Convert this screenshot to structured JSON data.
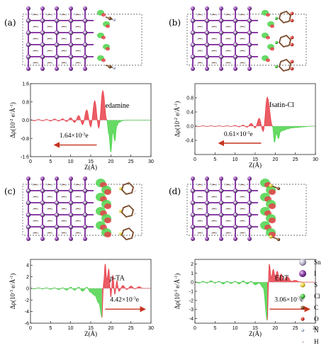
{
  "chart_data": [
    {
      "type": "area",
      "panel": "(a)",
      "molecule": "edamine",
      "charge_text": "1.64×10",
      "charge_exp": "-3",
      "charge_unit": "e",
      "xlabel": "Z(Å)",
      "ylabel_main": "Δρ(10",
      "ylabel_exp": "-2",
      "ylabel_tail": " e/Å",
      "ylabel_exp2": "-1",
      "ylabel_close": ")",
      "xlim": [
        0,
        30
      ],
      "ylim": [
        -1.6,
        1.6
      ],
      "yticks": [
        -1.6,
        -0.8,
        0.0,
        0.8,
        1.6
      ],
      "ytick_labels": [
        "-1.6",
        "-0.8",
        "0.0",
        "0.8",
        "1.6"
      ],
      "xticks": [
        0,
        5,
        10,
        15,
        20,
        25,
        30
      ],
      "xtick_labels": [
        "0",
        "5",
        "10",
        "15",
        "20",
        "25",
        "30"
      ],
      "boundary_z": 19,
      "series": [
        {
          "x": [
            0,
            1,
            2,
            3,
            4,
            5,
            6,
            7,
            8,
            9,
            10,
            11,
            12,
            13,
            14,
            15,
            16,
            17,
            18,
            19,
            19.5,
            20,
            20.5,
            21,
            21.5,
            22,
            23,
            24,
            25,
            26,
            27,
            28,
            29,
            30
          ],
          "y": [
            0.02,
            -0.03,
            0.03,
            -0.03,
            0.03,
            -0.04,
            0.05,
            -0.04,
            0.06,
            -0.06,
            0.1,
            -0.1,
            0.2,
            -0.2,
            0.45,
            -0.3,
            0.85,
            -0.35,
            1.3,
            0.0,
            -0.6,
            -1.4,
            -0.5,
            -0.9,
            -0.25,
            -0.1,
            -0.02,
            0.0,
            0.0,
            0.0,
            0.0,
            0.0,
            0.0,
            0.0
          ]
        }
      ]
    },
    {
      "type": "area",
      "panel": "(b)",
      "molecule": "Isatin-Cl",
      "charge_text": "0.61×10",
      "charge_exp": "-3",
      "charge_unit": "e",
      "xlabel": "Z(Å)",
      "ylabel_main": "Δρ(10",
      "ylabel_exp": "-2",
      "ylabel_tail": " e/Å",
      "ylabel_exp2": "-1",
      "ylabel_close": ")",
      "xlim": [
        0,
        30
      ],
      "ylim": [
        -0.8,
        1.2
      ],
      "yticks": [
        -0.4,
        0.0,
        0.4,
        0.8
      ],
      "ytick_labels": [
        "-0.4",
        "0.0",
        "0.4",
        "0.8"
      ],
      "xticks": [
        0,
        5,
        10,
        15,
        20,
        25,
        30
      ],
      "xtick_labels": [
        "0",
        "5",
        "10",
        "15",
        "20",
        "25",
        "30"
      ],
      "boundary_z": 19.3,
      "series": [
        {
          "x": [
            0,
            1,
            2,
            3,
            4,
            5,
            6,
            7,
            8,
            9,
            10,
            11,
            12,
            13,
            14,
            15,
            16,
            17,
            18,
            19.3,
            19.8,
            20.3,
            20.8,
            21.3,
            22,
            23,
            24,
            25,
            26,
            27,
            28,
            29,
            30
          ],
          "y": [
            0.01,
            -0.01,
            0.01,
            -0.01,
            0.01,
            -0.01,
            0.01,
            -0.01,
            0.01,
            -0.01,
            0.02,
            -0.02,
            0.03,
            -0.03,
            0.08,
            -0.05,
            0.22,
            -0.15,
            0.82,
            0.0,
            -0.45,
            -0.2,
            -0.35,
            -0.15,
            -0.12,
            -0.08,
            -0.05,
            -0.04,
            -0.03,
            -0.02,
            -0.01,
            0.0,
            0.0
          ]
        }
      ]
    },
    {
      "type": "area",
      "panel": "(c)",
      "molecule_italic": "p",
      "molecule": "-TA",
      "charge_text": "4.42×10",
      "charge_exp": "-3",
      "charge_unit": "e",
      "xlabel": "Z(Å)",
      "ylabel_main": "Δρ(10",
      "ylabel_exp": "-3",
      "ylabel_tail": " e/Å",
      "ylabel_exp2": "-1",
      "ylabel_close": ")",
      "xlim": [
        0,
        30
      ],
      "ylim": [
        -6,
        5
      ],
      "yticks": [
        -6,
        -4,
        -2,
        0,
        2,
        4
      ],
      "ytick_labels": [
        "-6",
        "-4",
        "-2",
        "0",
        "2",
        "4"
      ],
      "xticks": [
        0,
        5,
        10,
        15,
        20,
        25,
        30
      ],
      "xtick_labels": [
        "0",
        "5",
        "10",
        "15",
        "20",
        "25",
        "30"
      ],
      "boundary_z": 17.8,
      "series": [
        {
          "x": [
            0,
            1,
            2,
            3,
            4,
            5,
            6,
            7,
            8,
            9,
            10,
            11,
            12,
            13,
            14,
            15,
            16,
            17,
            17.8,
            18.2,
            18.6,
            19,
            19.5,
            20,
            20.5,
            21,
            21.5,
            22,
            23,
            24,
            25,
            26,
            27,
            28,
            29,
            30
          ],
          "y": [
            0.05,
            -0.1,
            0.1,
            -0.1,
            0.1,
            -0.15,
            0.1,
            -0.2,
            0.1,
            -0.3,
            0.2,
            -0.3,
            0.2,
            -0.5,
            0.2,
            -0.7,
            -1.2,
            -2.5,
            -5.0,
            1.0,
            4.2,
            1.5,
            3.3,
            -1.5,
            2.3,
            -1.0,
            1.3,
            -0.5,
            0.5,
            -0.2,
            0.4,
            -0.1,
            0.3,
            0.0,
            0.0,
            0.0
          ]
        }
      ]
    },
    {
      "type": "area",
      "panel": "(d)",
      "molecule": "EDT",
      "charge_text": "3.06×10",
      "charge_exp": "-3",
      "charge_unit": "e",
      "xlabel": "Z(Å)",
      "ylabel_main": "Δρ(10",
      "ylabel_exp": "-3",
      "ylabel_tail": " e/Å",
      "ylabel_exp2": "-1",
      "ylabel_close": ")",
      "xlim": [
        0,
        30
      ],
      "ylim": [
        -4.5,
        2.5
      ],
      "yticks": [
        -4,
        -3,
        -2,
        -1,
        0,
        1,
        2
      ],
      "ytick_labels": [
        "-4",
        "-3",
        "-2",
        "-1",
        "0",
        "1",
        "2"
      ],
      "xticks": [
        0,
        5,
        10,
        15,
        20,
        25,
        30
      ],
      "xtick_labels": [
        "0",
        "5",
        "10",
        "15",
        "20",
        "25",
        "30"
      ],
      "boundary_z": 18,
      "series": [
        {
          "x": [
            0,
            1,
            2,
            3,
            4,
            5,
            6,
            7,
            8,
            9,
            10,
            11,
            12,
            13,
            14,
            15,
            16,
            17,
            18,
            18.5,
            19,
            19.5,
            20,
            20.5,
            21,
            21.5,
            22,
            23,
            24,
            25,
            26,
            27,
            28,
            29,
            30
          ],
          "y": [
            0.05,
            -0.1,
            0.1,
            -0.1,
            0.15,
            -0.1,
            0.1,
            -0.2,
            0.1,
            -0.15,
            0.1,
            -0.2,
            0.15,
            -0.2,
            0.1,
            -0.3,
            -0.1,
            -0.6,
            -4.2,
            2.0,
            0.5,
            1.4,
            0.6,
            1.2,
            0.4,
            0.9,
            0.2,
            0.6,
            0.1,
            0.2,
            0.05,
            0.0,
            0.0,
            0.0,
            0.0
          ]
        }
      ]
    }
  ],
  "legend": [
    {
      "symbol": "Sn",
      "color": "#b8b4c8"
    },
    {
      "symbol": "I",
      "color": "#8a3ea5"
    },
    {
      "symbol": "S",
      "color": "#e6cf3a"
    },
    {
      "symbol": "Cl",
      "color": "#3fbf3a"
    },
    {
      "symbol": "C",
      "color": "#7a4a2a"
    },
    {
      "symbol": "O",
      "color": "#d8352a"
    },
    {
      "symbol": "N",
      "color": "#b8c8e0"
    },
    {
      "symbol": "H",
      "color": "#f0e0e0"
    }
  ],
  "colors": {
    "accumulation": "#e8404a",
    "depletion": "#4bd34a",
    "arrow": "#c8331e",
    "iodine": "#8a3ea5"
  }
}
